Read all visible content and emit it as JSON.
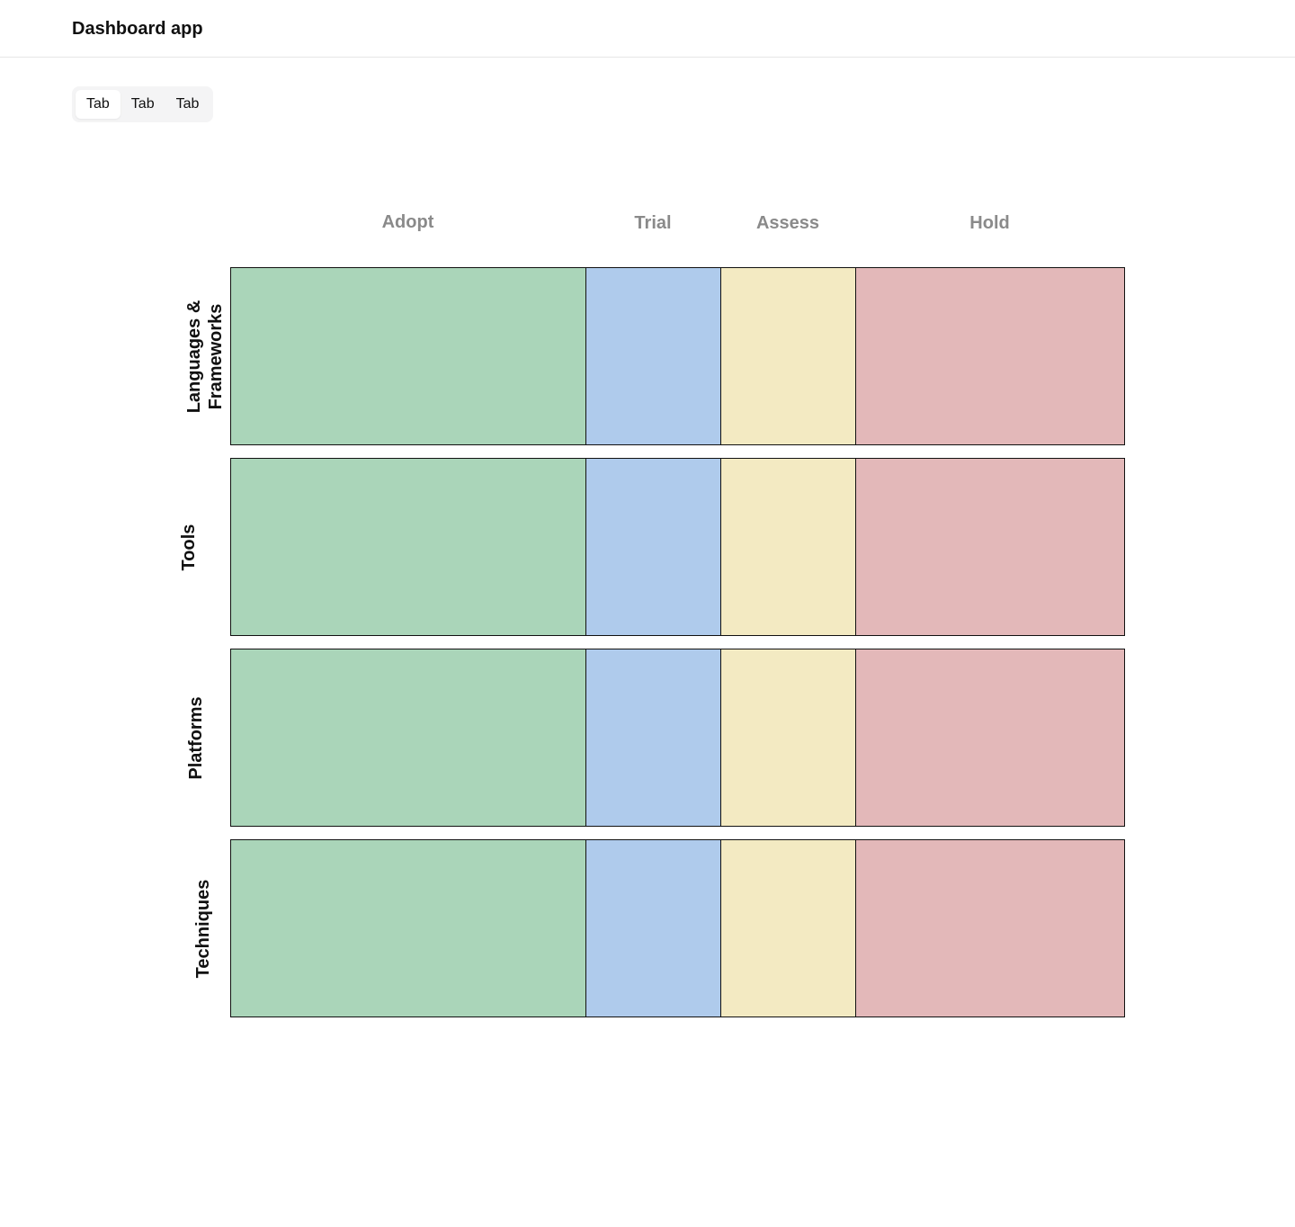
{
  "header": {
    "title": "Dashboard app"
  },
  "tabs": [
    {
      "label": "Tab",
      "active": true
    },
    {
      "label": "Tab",
      "active": false
    },
    {
      "label": "Tab",
      "active": false
    }
  ],
  "radar": {
    "rings": [
      {
        "label": "Adopt",
        "color": "#aad5b9"
      },
      {
        "label": "Trial",
        "color": "#afcbec"
      },
      {
        "label": "Assess",
        "color": "#f3eac2"
      },
      {
        "label": "Hold",
        "color": "#e3b8b9"
      }
    ],
    "quadrants": [
      {
        "label": "Languages & Frameworks"
      },
      {
        "label": "Tools"
      },
      {
        "label": "Platforms"
      },
      {
        "label": "Techniques"
      }
    ]
  }
}
